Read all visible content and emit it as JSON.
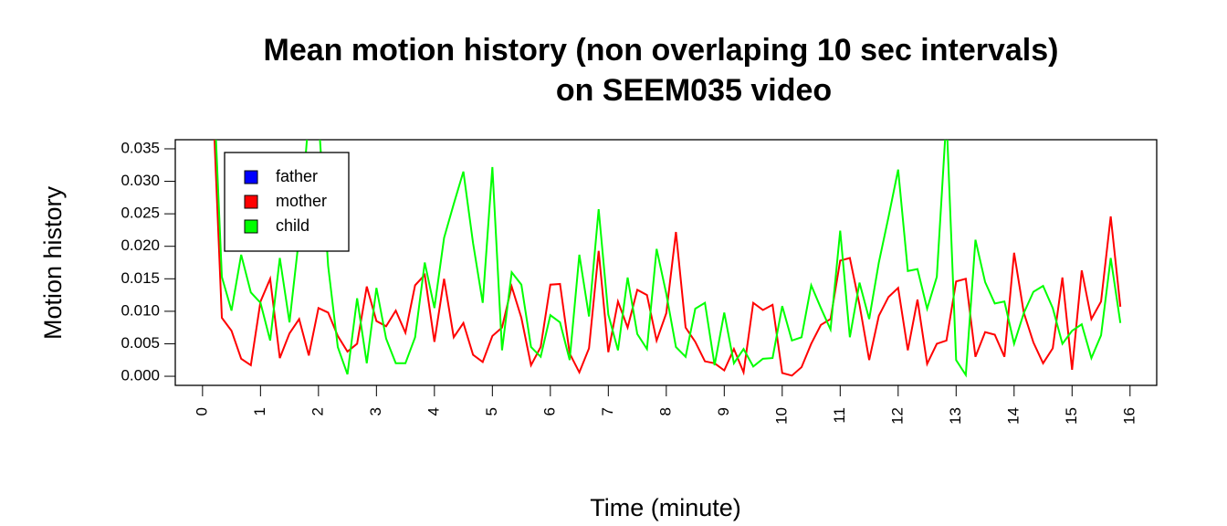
{
  "chart_data": {
    "type": "line",
    "title": [
      "Mean motion history (non overlaping 10 sec intervals)",
      "on SEEM035 video"
    ],
    "xlabel": "Time (minute)",
    "ylabel": "Motion history",
    "legend": "top-left",
    "xlim": [
      -0.47,
      16.46
    ],
    "ylim": [
      -0.0014,
      0.0364
    ],
    "xticks": [
      0,
      1,
      2,
      3,
      4,
      5,
      6,
      7,
      8,
      9,
      10,
      11,
      12,
      13,
      14,
      15,
      16
    ],
    "yticks": [
      {
        "value": 0,
        "label": "0.000"
      },
      {
        "value": 0.005,
        "label": "0.005"
      },
      {
        "value": 0.01,
        "label": "0.010"
      },
      {
        "value": 0.015,
        "label": "0.015"
      },
      {
        "value": 0.02,
        "label": "0.020"
      },
      {
        "value": 0.025,
        "label": "0.025"
      },
      {
        "value": 0.03,
        "label": "0.030"
      },
      {
        "value": 0.035,
        "label": "0.035"
      }
    ],
    "x": [
      0.1667,
      0.3333,
      0.5,
      0.6667,
      0.8333,
      1,
      1.1667,
      1.3333,
      1.5,
      1.6667,
      1.8333,
      2,
      2.1667,
      2.3333,
      2.5,
      2.6667,
      2.8333,
      3,
      3.1667,
      3.3333,
      3.5,
      3.6667,
      3.8333,
      4,
      4.1667,
      4.3333,
      4.5,
      4.6667,
      4.8333,
      5,
      5.1667,
      5.3333,
      5.5,
      5.6667,
      5.8333,
      6,
      6.1667,
      6.3333,
      6.5,
      6.6667,
      6.8333,
      7,
      7.1667,
      7.3333,
      7.5,
      7.6667,
      7.8333,
      8,
      8.1667,
      8.3333,
      8.5,
      8.6667,
      8.8333,
      9,
      9.1667,
      9.3333,
      9.5,
      9.6667,
      9.8333,
      10,
      10.1667,
      10.3333,
      10.5,
      10.6667,
      10.8333,
      11,
      11.1667,
      11.3333,
      11.5,
      11.6667,
      11.8333,
      12,
      12.1667,
      12.3333,
      12.5,
      12.6667,
      12.8333,
      13,
      13.1667,
      13.3333,
      13.5,
      13.6667,
      13.8333,
      14,
      14.1667,
      14.3333,
      14.5,
      14.6667,
      14.8333,
      15,
      15.1667,
      15.3333,
      15.5,
      15.6667,
      15.8333
    ],
    "series": [
      {
        "name": "father",
        "color": "#0000ff",
        "values": [
          null,
          null,
          null,
          null,
          null,
          null,
          null,
          null,
          null,
          null,
          null,
          null,
          null,
          null,
          null,
          null,
          null,
          null,
          null,
          null,
          null,
          null,
          null,
          null,
          null,
          null,
          null,
          null,
          null,
          null,
          null,
          null,
          null,
          null,
          null,
          null,
          null,
          null,
          null,
          null,
          null,
          null,
          null,
          null,
          null,
          null,
          null,
          null,
          null,
          null,
          null,
          null,
          null,
          null,
          null,
          null,
          null,
          null,
          null,
          null,
          null,
          null,
          null,
          null,
          null,
          null,
          null,
          null,
          null,
          null,
          null,
          null,
          null,
          null,
          null,
          null,
          null,
          null,
          null,
          null,
          null,
          null,
          null,
          null,
          null,
          null,
          null,
          null,
          null,
          null,
          null,
          null,
          null,
          null,
          null
        ]
      },
      {
        "name": "mother",
        "color": "#ff0000",
        "values": [
          0.045,
          0.009,
          0.007,
          0.0027,
          0.0017,
          0.0115,
          0.015,
          0.0028,
          0.0066,
          0.0088,
          0.0032,
          0.0105,
          0.0098,
          0.0062,
          0.0038,
          0.005,
          0.0138,
          0.0085,
          0.0077,
          0.0101,
          0.0067,
          0.014,
          0.0156,
          0.0053,
          0.015,
          0.006,
          0.0082,
          0.0033,
          0.0022,
          0.0062,
          0.0075,
          0.0138,
          0.009,
          0.0017,
          0.0045,
          0.0141,
          0.0142,
          0.0035,
          0.0006,
          0.0043,
          0.0193,
          0.0037,
          0.0115,
          0.0075,
          0.0133,
          0.0125,
          0.0055,
          0.0097,
          0.0222,
          0.0075,
          0.0053,
          0.0023,
          0.002,
          0.0009,
          0.0042,
          0.0006,
          0.0113,
          0.0102,
          0.011,
          0.0005,
          0.0001,
          0.0014,
          0.005,
          0.0079,
          0.0088,
          0.0178,
          0.0182,
          0.011,
          0.0025,
          0.0093,
          0.0122,
          0.0136,
          0.004,
          0.0118,
          0.0019,
          0.005,
          0.0055,
          0.0146,
          0.015,
          0.003,
          0.0068,
          0.0064,
          0.003,
          0.019,
          0.0098,
          0.0052,
          0.002,
          0.0043,
          0.0152,
          0.001,
          0.0163,
          0.0088,
          0.0115,
          0.0246,
          0.0107
        ]
      },
      {
        "name": "child",
        "color": "#00ff00",
        "values": [
          0.05,
          0.0153,
          0.0101,
          0.0187,
          0.0129,
          0.0113,
          0.0055,
          0.0182,
          0.0083,
          0.0215,
          0.04,
          0.04,
          0.017,
          0.0045,
          0.0003,
          0.012,
          0.002,
          0.0136,
          0.0058,
          0.002,
          0.002,
          0.006,
          0.0175,
          0.0105,
          0.0213,
          0.0265,
          0.0315,
          0.0205,
          0.0113,
          0.0322,
          0.004,
          0.016,
          0.0141,
          0.0045,
          0.003,
          0.0094,
          0.0083,
          0.0025,
          0.0187,
          0.0092,
          0.0257,
          0.0095,
          0.004,
          0.0152,
          0.0065,
          0.0042,
          0.0196,
          0.0127,
          0.0045,
          0.003,
          0.0104,
          0.0113,
          0.0017,
          0.0098,
          0.002,
          0.0042,
          0.0015,
          0.0027,
          0.0028,
          0.0108,
          0.0055,
          0.006,
          0.014,
          0.0105,
          0.0072,
          0.0224,
          0.006,
          0.0144,
          0.0088,
          0.0175,
          0.0245,
          0.0318,
          0.0162,
          0.0165,
          0.0104,
          0.0153,
          0.04,
          0.0025,
          0.0002,
          0.021,
          0.0145,
          0.0112,
          0.0115,
          0.005,
          0.0097,
          0.013,
          0.0139,
          0.0105,
          0.005,
          0.007,
          0.008,
          0.0028,
          0.0063,
          0.0182,
          0.0082
        ]
      }
    ]
  }
}
